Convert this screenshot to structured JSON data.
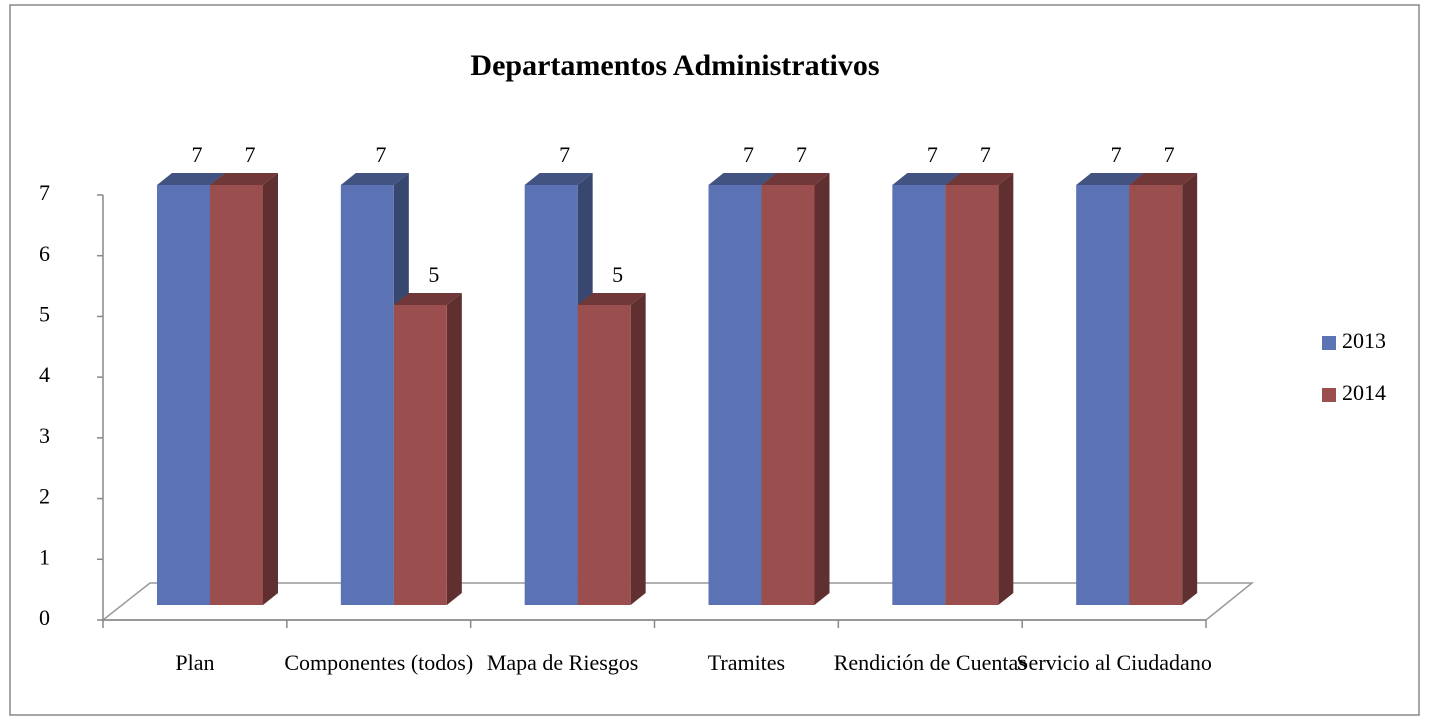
{
  "chart_data": {
    "type": "bar3d",
    "title": "Departamentos Administrativos",
    "categories": [
      "Plan",
      "Componentes (todos)",
      "Mapa de Riesgos",
      "Tramites",
      "Rendición de Cuentas",
      "Servicio al Ciudadano"
    ],
    "series": [
      {
        "name": "2013",
        "color": "#5b73b5",
        "values": [
          7,
          7,
          7,
          7,
          7,
          7
        ]
      },
      {
        "name": "2014",
        "color": "#9b4e4e",
        "values": [
          7,
          5,
          5,
          7,
          7,
          7
        ]
      }
    ],
    "ylim": [
      0,
      7
    ],
    "yticks": [
      0,
      1,
      2,
      3,
      4,
      5,
      6,
      7
    ],
    "legend": "right"
  }
}
